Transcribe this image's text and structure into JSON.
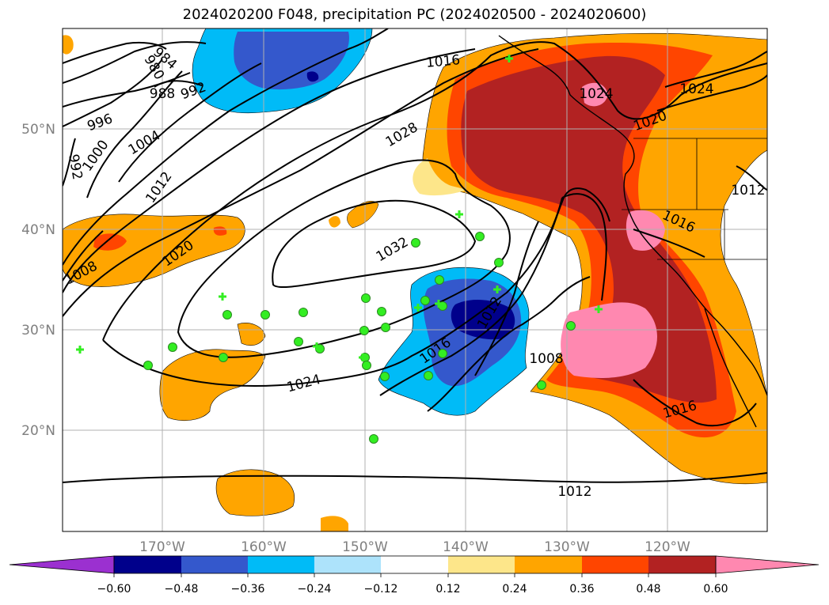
{
  "title": "2024020200 F048, precipitation PC (2024020500 - 2024020600)",
  "map": {
    "lat_ticks": [
      "20°N",
      "30°N",
      "40°N",
      "50°N"
    ],
    "lon_ticks": [
      "170°W",
      "160°W",
      "150°W",
      "140°W",
      "130°W",
      "120°W"
    ],
    "isobar_labels": [
      "984",
      "980",
      "988",
      "992",
      "996",
      "1000",
      "1004",
      "992",
      "1012",
      "1016",
      "1020",
      "1008",
      "1028",
      "1024",
      "1020",
      "1024",
      "1012",
      "1016",
      "1032",
      "1012",
      "1016",
      "1008",
      "1024",
      "1016",
      "1012"
    ],
    "colors": {
      "neg_060": "#9b30d0",
      "neg_048": "#00008b",
      "neg_036": "#3458cc",
      "neg_024": "#00bbf7",
      "neg_012": "#ade3fb",
      "neutral": "#ffffff",
      "pos_012": "#fde68a",
      "pos_024": "#ffa500",
      "pos_036": "#ff4500",
      "pos_048": "#b22222",
      "pos_060": "#ff88b0",
      "marker": "#33ee22",
      "grid": "#b0b0b0"
    }
  },
  "colorbar": {
    "ticks": [
      "−0.60",
      "−0.48",
      "−0.36",
      "−0.24",
      "−0.12",
      "0.12",
      "0.24",
      "0.36",
      "0.48",
      "0.60"
    ]
  }
}
